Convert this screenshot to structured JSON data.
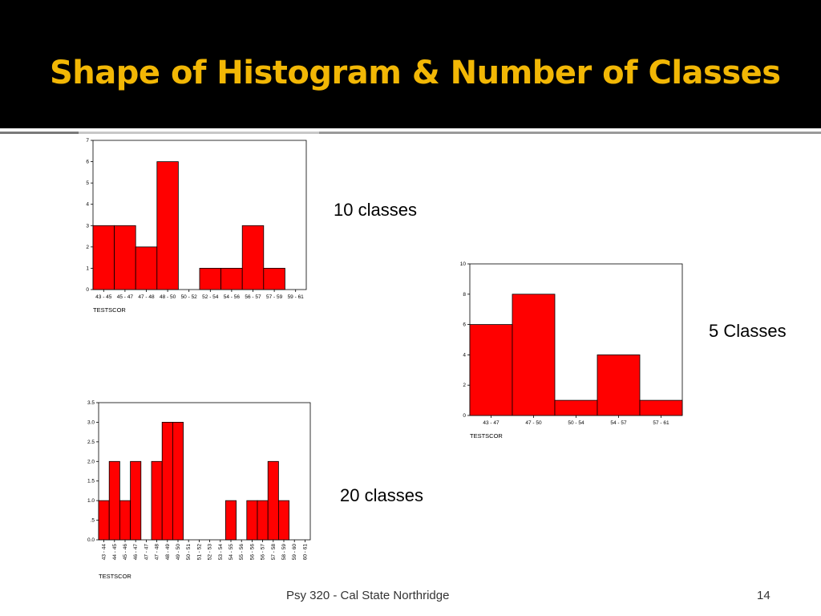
{
  "slide": {
    "title": "Shape of Histogram & Number of Classes",
    "footer_text": "Psy 320 - Cal State Northridge",
    "page_number": "14"
  },
  "captions": {
    "ten": "10 classes",
    "five": "5 Classes",
    "twenty": "20 classes"
  },
  "colors": {
    "bar": "#ff0000",
    "title": "#f2b705",
    "header": "#000000"
  },
  "chart_data": [
    {
      "type": "bar",
      "categories": [
        "43 - 45",
        "45 - 47",
        "47 - 48",
        "48 - 50",
        "50 - 52",
        "52 - 54",
        "54 - 56",
        "56 - 57",
        "57 - 59",
        "59 - 61"
      ],
      "values": [
        3,
        3,
        2,
        6,
        0,
        1,
        1,
        3,
        1,
        0
      ],
      "yticks": [
        "0",
        "1",
        "2",
        "3",
        "4",
        "5",
        "6",
        "7"
      ],
      "ylim": [
        0,
        7
      ],
      "xlabel": "TESTSCOR",
      "ylabel": ""
    },
    {
      "type": "bar",
      "categories": [
        "43 - 47",
        "47 - 50",
        "50 - 54",
        "54 - 57",
        "57 - 61"
      ],
      "values": [
        6,
        8,
        1,
        4,
        1
      ],
      "yticks": [
        "0",
        "2",
        "4",
        "6",
        "8",
        "10"
      ],
      "ylim": [
        0,
        10
      ],
      "xlabel": "TESTSCOR",
      "ylabel": ""
    },
    {
      "type": "bar",
      "categories": [
        "43 - 44",
        "44 - 45",
        "45 - 46",
        "46 - 47",
        "47 - 47",
        "47 - 48",
        "48 - 49",
        "49 - 50",
        "50 - 51",
        "51 - 52",
        "52 - 53",
        "53 - 54",
        "54 - 55",
        "55 - 56",
        "56 - 56",
        "56 - 57",
        "57 - 58",
        "58 - 59",
        "59 - 60",
        "60 - 61"
      ],
      "values": [
        1,
        2,
        1,
        2,
        0,
        2,
        3,
        3,
        0,
        0,
        0,
        0,
        1,
        0,
        1,
        1,
        2,
        1,
        0,
        0
      ],
      "yticks": [
        "0.0",
        ".5",
        "1.0",
        "1.5",
        "2.0",
        "2.5",
        "3.0",
        "3.5"
      ],
      "ylim": [
        0,
        3.5
      ],
      "xlabel": "TESTSCOR",
      "ylabel": ""
    }
  ]
}
